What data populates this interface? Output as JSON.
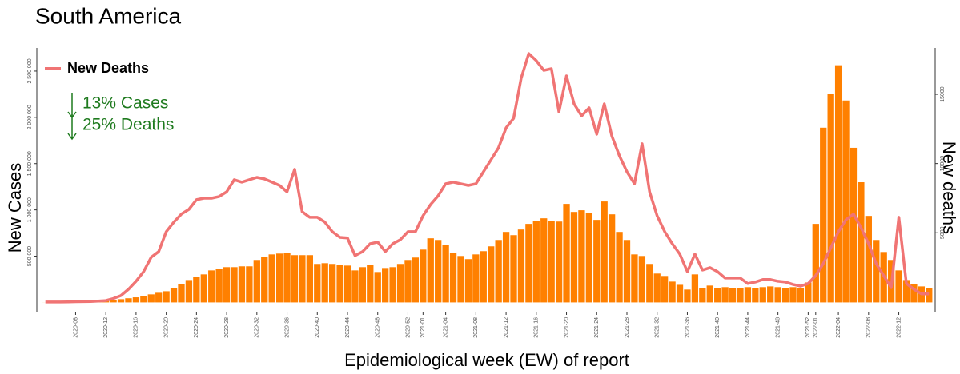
{
  "chart_data": {
    "type": "bar",
    "title": "South America",
    "xlabel": "Epidemiological week (EW) of report",
    "ylabel": "New Cases",
    "y2label": "New deaths",
    "annotations": [
      "13% Cases",
      "25% Deaths"
    ],
    "categories": [
      null,
      null,
      null,
      null,
      "2020-08",
      null,
      null,
      null,
      "2020-12",
      null,
      null,
      null,
      "2020-16",
      null,
      null,
      null,
      "2020-20",
      null,
      null,
      null,
      "2020-24",
      null,
      null,
      null,
      "2020-28",
      null,
      null,
      null,
      "2020-32",
      null,
      null,
      null,
      "2020-36",
      null,
      null,
      null,
      "2020-40",
      null,
      null,
      null,
      "2020-44",
      null,
      null,
      null,
      "2020-48",
      null,
      null,
      null,
      "2020-52",
      null,
      "2021-01",
      null,
      null,
      "2021-04",
      null,
      null,
      null,
      "2021-08",
      null,
      null,
      null,
      "2021-12",
      null,
      null,
      null,
      "2021-16",
      null,
      null,
      null,
      "2021-20",
      null,
      null,
      null,
      "2021-24",
      null,
      null,
      null,
      "2021-28",
      null,
      null,
      null,
      "2021-32",
      null,
      null,
      null,
      "2021-36",
      null,
      null,
      null,
      "2021-40",
      null,
      null,
      null,
      "2021-44",
      null,
      null,
      null,
      "2021-48",
      null,
      null,
      null,
      "2021-52",
      "2022-01",
      null,
      null,
      "2022-04",
      null,
      null,
      null,
      "2022-08",
      null,
      null,
      null,
      "2022-12",
      null,
      null,
      null,
      null
    ],
    "series": [
      {
        "color": "#ff8000",
        "values": [
          500,
          800,
          1500,
          2500,
          4000,
          6000,
          9000,
          12000,
          18000,
          27000,
          35000,
          45000,
          55000,
          70000,
          87000,
          104000,
          121000,
          156000,
          199000,
          242000,
          277000,
          303000,
          346000,
          364000,
          381000,
          381000,
          390000,
          390000,
          459000,
          494000,
          519000,
          528000,
          537000,
          511000,
          511000,
          511000,
          416000,
          424000,
          416000,
          407000,
          398000,
          346000,
          381000,
          407000,
          329000,
          372000,
          381000,
          416000,
          459000,
          485000,
          571000,
          693000,
          675000,
          623000,
          537000,
          502000,
          468000,
          519000,
          554000,
          606000,
          675000,
          762000,
          727000,
          788000,
          849000,
          883000,
          909000,
          883000,
          874000,
          1065000,
          978000,
          996000,
          970000,
          892000,
          1091000,
          952000,
          762000,
          675000,
          519000,
          502000,
          416000,
          312000,
          286000,
          225000,
          190000,
          139000,
          303000,
          156000,
          182000,
          156000,
          165000,
          156000,
          156000,
          165000,
          156000,
          165000,
          173000,
          165000,
          156000,
          165000,
          156000,
          216000,
          849000,
          1888000,
          2251000,
          2563000,
          2182000,
          1671000,
          1299000,
          935000,
          675000,
          545000,
          459000,
          346000,
          242000,
          199000,
          173000,
          156000
        ]
      },
      {
        "name": "New Deaths",
        "type": "line",
        "axis": "y2",
        "color": "#f07474",
        "values": [
          0,
          0,
          0,
          10,
          20,
          30,
          40,
          60,
          100,
          250,
          460,
          920,
          1500,
          2190,
          3230,
          3640,
          5080,
          5770,
          6350,
          6690,
          7390,
          7500,
          7500,
          7620,
          7960,
          8830,
          8660,
          8830,
          9000,
          8890,
          8660,
          8420,
          7960,
          9580,
          6520,
          6120,
          6120,
          5770,
          5080,
          4670,
          4620,
          3350,
          3640,
          4210,
          4330,
          3640,
          4210,
          4500,
          5080,
          5080,
          6230,
          7040,
          7670,
          8540,
          8660,
          8540,
          8420,
          8540,
          9410,
          10270,
          11140,
          12580,
          13270,
          16160,
          17940,
          17430,
          16730,
          16850,
          13730,
          16330,
          14310,
          13440,
          14020,
          12120,
          14310,
          12000,
          10560,
          9410,
          8540,
          11430,
          7960,
          6230,
          5080,
          4210,
          3460,
          2190,
          3460,
          2310,
          2480,
          2190,
          1730,
          1730,
          1730,
          1330,
          1440,
          1620,
          1620,
          1500,
          1440,
          1270,
          1150,
          1330,
          1910,
          2770,
          3920,
          5080,
          5940,
          6350,
          5370,
          4210,
          2770,
          1910,
          1040,
          6120,
          1330,
          920,
          580,
          580
        ]
      }
    ],
    "ylim": [
      -100000,
      2750000
    ],
    "yticks": [
      {
        "value": 500000,
        "label": "500 000"
      },
      {
        "value": 1000000,
        "label": "1 000 000"
      },
      {
        "value": 1500000,
        "label": "1 500 000"
      },
      {
        "value": 2000000,
        "label": "2 000 000"
      },
      {
        "value": 2500000,
        "label": "2 500 000"
      }
    ],
    "y2lim": [
      -700,
      18350
    ],
    "y2ticks": [
      5000,
      10000,
      15000
    ],
    "annotation_color": "#1e7a1e"
  }
}
